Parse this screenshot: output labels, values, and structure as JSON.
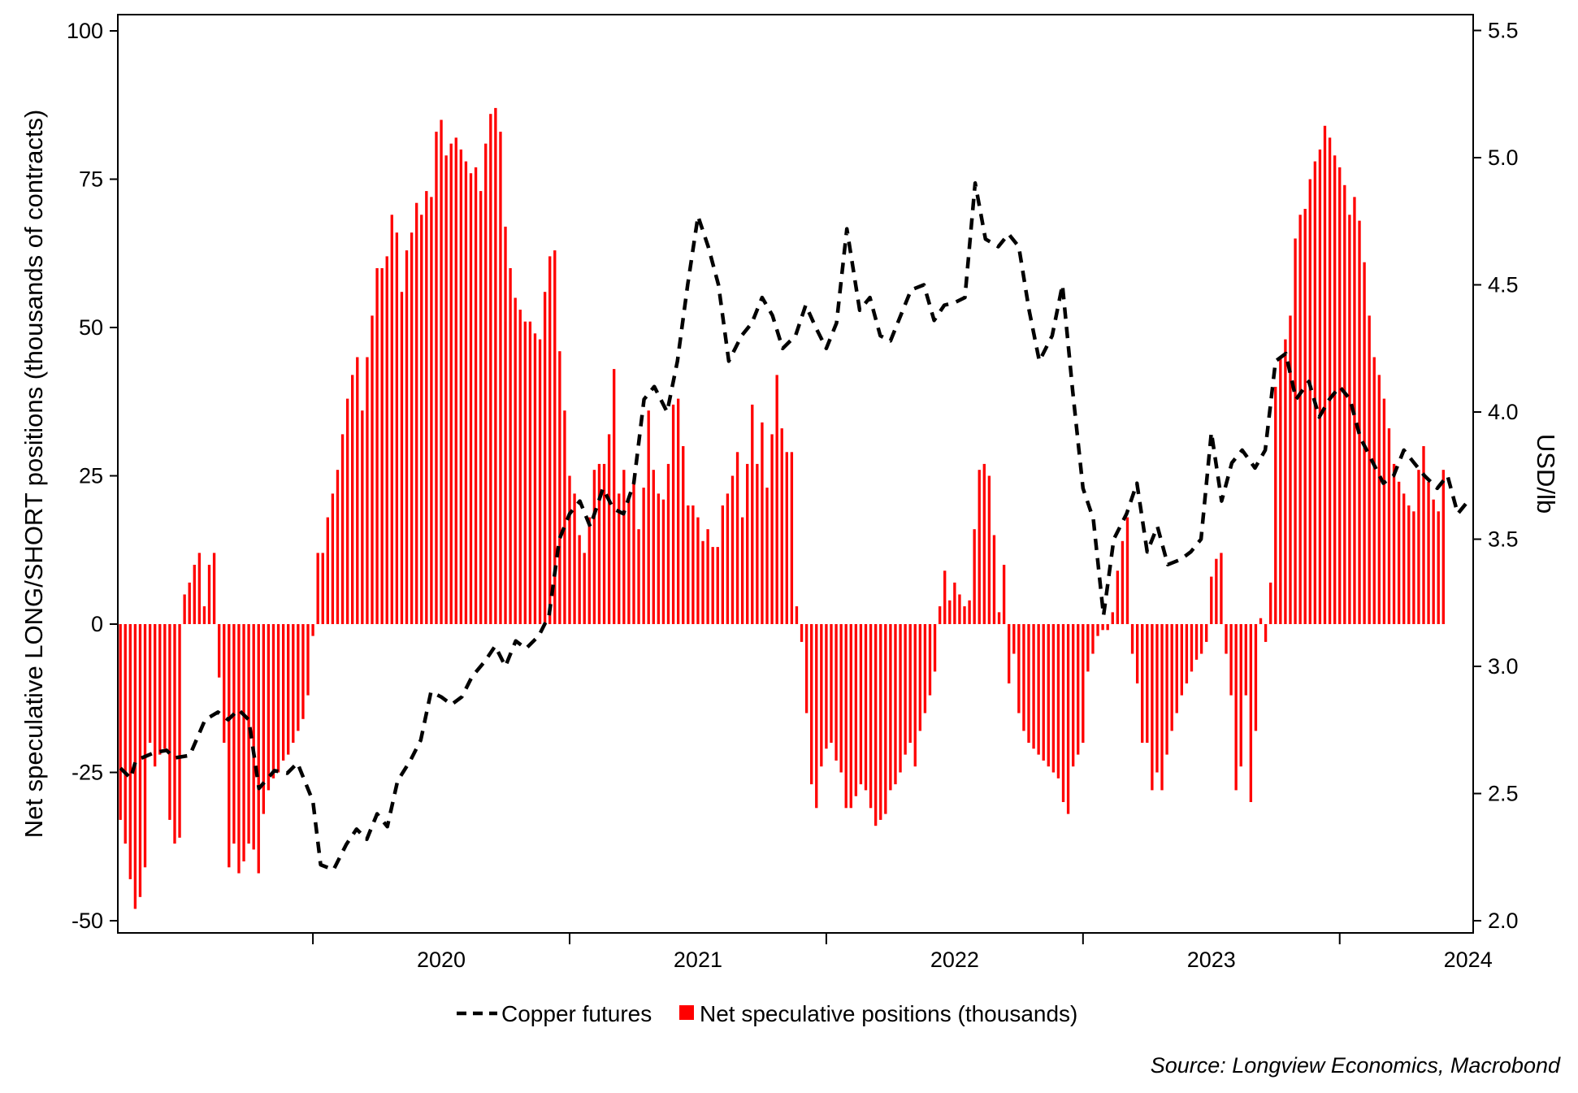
{
  "chart_data": {
    "type": "bar+line",
    "title": "",
    "ylabel_left": "Net speculative LONG/SHORT positions (thousands of contracts)",
    "ylabel_right": "USD/lb",
    "ylim_left": [
      -52,
      100
    ],
    "ylim_right": [
      1.98,
      5.5
    ],
    "yticks_left": [
      "100",
      "75",
      "50",
      "25",
      "0",
      "-25",
      "-50"
    ],
    "yticks_left_values": [
      100,
      75,
      50,
      25,
      0,
      -25,
      -50
    ],
    "yticks_right": [
      "5.5",
      "5.0",
      "4.5",
      "4.0",
      "3.5",
      "3.0",
      "2.5",
      "2.0"
    ],
    "yticks_right_values": [
      5.5,
      5.0,
      4.5,
      4.0,
      3.5,
      3.0,
      2.5,
      2.0
    ],
    "x_year_labels": [
      "2020",
      "2021",
      "2022",
      "2023",
      "2024"
    ],
    "x_start": 2019.24,
    "x_end": 2024.52,
    "legend": {
      "line_label": "Copper futures",
      "bar_label": "Net speculative positions (thousands)",
      "placement": "bottom"
    },
    "source": "Source: Longview Economics, Macrobond",
    "colors": {
      "bars": "#ff0000",
      "line": "#000000",
      "axis": "#000000"
    },
    "bar_series": {
      "name": "Net speculative positions (thousands)",
      "start": 2019.25,
      "step_weeks": 1,
      "values": [
        -33,
        -37,
        -43,
        -48,
        -46,
        -41,
        -20,
        -24,
        -22,
        -21,
        -33,
        -37,
        -36,
        5,
        7,
        10,
        12,
        3,
        10,
        12,
        -9,
        -20,
        -41,
        -37,
        -42,
        -40,
        -37,
        -38,
        -42,
        -32,
        -28,
        -26,
        -25,
        -23,
        -22,
        -20,
        -18,
        -16,
        -12,
        -2,
        12,
        12,
        18,
        22,
        26,
        32,
        38,
        42,
        45,
        36,
        45,
        52,
        60,
        60,
        62,
        69,
        66,
        56,
        63,
        66,
        71,
        69,
        73,
        72,
        83,
        85,
        79,
        81,
        82,
        80,
        78,
        76,
        77,
        73,
        81,
        86,
        87,
        83,
        67,
        60,
        55,
        53,
        51,
        51,
        49,
        48,
        56,
        62,
        63,
        46,
        36,
        25,
        22,
        15,
        12,
        18,
        26,
        27,
        27,
        32,
        43,
        22,
        26,
        21,
        24,
        16,
        23,
        36,
        26,
        22,
        21,
        27,
        37,
        38,
        30,
        20,
        20,
        18,
        14,
        16,
        13,
        13,
        20,
        22,
        25,
        29,
        18,
        27,
        37,
        27,
        34,
        23,
        32,
        42,
        33,
        29,
        29,
        3,
        -3,
        -15,
        -27,
        -31,
        -24,
        -21,
        -20,
        -23,
        -25,
        -31,
        -31,
        -29,
        -27,
        -28,
        -31,
        -34,
        -33,
        -32,
        -28,
        -27,
        -25,
        -22,
        -20,
        -24,
        -18,
        -15,
        -12,
        -8,
        3,
        9,
        4,
        7,
        5,
        3,
        4,
        16,
        26,
        27,
        25,
        15,
        2,
        10,
        -10,
        -5,
        -15,
        -18,
        -20,
        -21,
        -22,
        -23,
        -24,
        -25,
        -26,
        -30,
        -32,
        -24,
        -22,
        -20,
        -8,
        -5,
        -2,
        -1,
        -1,
        2,
        9,
        14,
        18,
        -5,
        -10,
        -20,
        -20,
        -28,
        -25,
        -28,
        -22,
        -18,
        -15,
        -12,
        -10,
        -8,
        -6,
        -5,
        -3,
        8,
        11,
        12,
        -5,
        -12,
        -28,
        -24,
        -12,
        -30,
        -18,
        1,
        -3,
        7,
        40,
        45,
        48,
        52,
        65,
        69,
        70,
        75,
        78,
        80,
        84,
        82,
        79,
        77,
        74,
        69,
        72,
        68,
        61,
        52,
        45,
        42,
        38,
        33,
        27,
        24,
        22,
        20,
        19,
        26,
        30,
        24,
        21,
        19,
        26
      ]
    },
    "line_series": {
      "name": "Copper futures",
      "points": [
        [
          2019.25,
          2.6
        ],
        [
          2019.29,
          2.56
        ],
        [
          2019.31,
          2.63
        ],
        [
          2019.38,
          2.66
        ],
        [
          2019.43,
          2.67
        ],
        [
          2019.46,
          2.64
        ],
        [
          2019.52,
          2.65
        ],
        [
          2019.58,
          2.79
        ],
        [
          2019.63,
          2.82
        ],
        [
          2019.67,
          2.79
        ],
        [
          2019.71,
          2.83
        ],
        [
          2019.75,
          2.79
        ],
        [
          2019.79,
          2.52
        ],
        [
          2019.85,
          2.59
        ],
        [
          2019.9,
          2.58
        ],
        [
          2019.94,
          2.62
        ],
        [
          2020.0,
          2.47
        ],
        [
          2020.03,
          2.22
        ],
        [
          2020.08,
          2.2
        ],
        [
          2020.13,
          2.3
        ],
        [
          2020.17,
          2.36
        ],
        [
          2020.21,
          2.32
        ],
        [
          2020.25,
          2.42
        ],
        [
          2020.29,
          2.37
        ],
        [
          2020.33,
          2.55
        ],
        [
          2020.38,
          2.63
        ],
        [
          2020.42,
          2.71
        ],
        [
          2020.46,
          2.9
        ],
        [
          2020.5,
          2.88
        ],
        [
          2020.54,
          2.85
        ],
        [
          2020.58,
          2.88
        ],
        [
          2020.62,
          2.96
        ],
        [
          2020.67,
          3.02
        ],
        [
          2020.71,
          3.08
        ],
        [
          2020.75,
          3.0
        ],
        [
          2020.79,
          3.1
        ],
        [
          2020.83,
          3.07
        ],
        [
          2020.88,
          3.12
        ],
        [
          2020.92,
          3.2
        ],
        [
          2020.96,
          3.5
        ],
        [
          2021.0,
          3.6
        ],
        [
          2021.04,
          3.65
        ],
        [
          2021.08,
          3.55
        ],
        [
          2021.13,
          3.7
        ],
        [
          2021.17,
          3.62
        ],
        [
          2021.21,
          3.6
        ],
        [
          2021.25,
          3.72
        ],
        [
          2021.29,
          4.05
        ],
        [
          2021.33,
          4.1
        ],
        [
          2021.38,
          4.0
        ],
        [
          2021.42,
          4.2
        ],
        [
          2021.46,
          4.5
        ],
        [
          2021.5,
          4.77
        ],
        [
          2021.54,
          4.65
        ],
        [
          2021.58,
          4.5
        ],
        [
          2021.62,
          4.2
        ],
        [
          2021.67,
          4.3
        ],
        [
          2021.71,
          4.35
        ],
        [
          2021.75,
          4.45
        ],
        [
          2021.79,
          4.38
        ],
        [
          2021.83,
          4.25
        ],
        [
          2021.88,
          4.3
        ],
        [
          2021.92,
          4.42
        ],
        [
          2021.96,
          4.33
        ],
        [
          2022.0,
          4.25
        ],
        [
          2022.04,
          4.35
        ],
        [
          2022.08,
          4.72
        ],
        [
          2022.13,
          4.4
        ],
        [
          2022.17,
          4.45
        ],
        [
          2022.21,
          4.3
        ],
        [
          2022.25,
          4.28
        ],
        [
          2022.29,
          4.38
        ],
        [
          2022.33,
          4.48
        ],
        [
          2022.38,
          4.5
        ],
        [
          2022.42,
          4.36
        ],
        [
          2022.46,
          4.42
        ],
        [
          2022.5,
          4.43
        ],
        [
          2022.54,
          4.45
        ],
        [
          2022.58,
          4.9
        ],
        [
          2022.62,
          4.68
        ],
        [
          2022.67,
          4.65
        ],
        [
          2022.71,
          4.7
        ],
        [
          2022.75,
          4.65
        ],
        [
          2022.79,
          4.4
        ],
        [
          2022.83,
          4.2
        ],
        [
          2022.88,
          4.3
        ],
        [
          2022.92,
          4.5
        ],
        [
          2022.96,
          4.08
        ],
        [
          2023.0,
          3.7
        ],
        [
          2023.04,
          3.58
        ],
        [
          2023.08,
          3.2
        ],
        [
          2023.12,
          3.5
        ],
        [
          2023.17,
          3.6
        ],
        [
          2023.21,
          3.72
        ],
        [
          2023.25,
          3.45
        ],
        [
          2023.29,
          3.55
        ],
        [
          2023.33,
          3.4
        ],
        [
          2023.38,
          3.42
        ],
        [
          2023.42,
          3.45
        ],
        [
          2023.46,
          3.5
        ],
        [
          2023.5,
          3.92
        ],
        [
          2023.54,
          3.65
        ],
        [
          2023.58,
          3.8
        ],
        [
          2023.62,
          3.85
        ],
        [
          2023.67,
          3.78
        ],
        [
          2023.71,
          3.85
        ],
        [
          2023.75,
          4.2
        ],
        [
          2023.79,
          4.23
        ],
        [
          2023.83,
          4.05
        ],
        [
          2023.88,
          4.12
        ],
        [
          2023.92,
          3.98
        ],
        [
          2023.96,
          4.05
        ],
        [
          2024.0,
          4.1
        ],
        [
          2024.04,
          4.05
        ],
        [
          2024.08,
          3.9
        ],
        [
          2024.13,
          3.8
        ],
        [
          2024.17,
          3.72
        ],
        [
          2024.21,
          3.75
        ],
        [
          2024.25,
          3.85
        ],
        [
          2024.29,
          3.8
        ],
        [
          2024.33,
          3.75
        ],
        [
          2024.38,
          3.7
        ],
        [
          2024.42,
          3.75
        ],
        [
          2024.46,
          3.6
        ],
        [
          2024.5,
          3.65
        ]
      ]
    }
  }
}
